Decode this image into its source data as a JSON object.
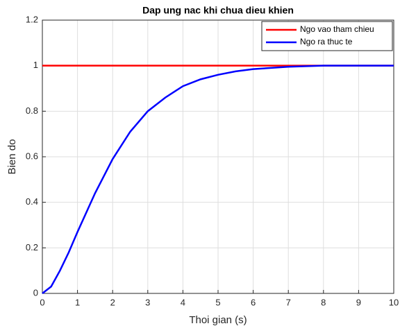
{
  "chart_data": {
    "type": "line",
    "title": "Dap ung nac khi chua dieu khien",
    "xlabel": "Thoi gian (s)",
    "ylabel": "Bien do",
    "x": [
      0,
      0.25,
      0.5,
      0.75,
      1,
      1.5,
      2,
      2.5,
      3,
      3.5,
      4,
      4.5,
      5,
      5.5,
      6,
      7,
      8,
      9,
      10
    ],
    "series": [
      {
        "name": "Ngo vao tham chieu",
        "color": "#ff0000",
        "values": [
          1,
          1,
          1,
          1,
          1,
          1,
          1,
          1,
          1,
          1,
          1,
          1,
          1,
          1,
          1,
          1,
          1,
          1,
          1
        ]
      },
      {
        "name": "Ngo ra thuc te",
        "color": "#0000ff",
        "values": [
          0,
          0.03,
          0.1,
          0.18,
          0.27,
          0.44,
          0.59,
          0.71,
          0.8,
          0.86,
          0.91,
          0.94,
          0.96,
          0.975,
          0.985,
          0.995,
          1,
          1,
          1
        ]
      }
    ],
    "xlim": [
      0,
      10
    ],
    "ylim": [
      0,
      1.2
    ],
    "xticks": [
      0,
      1,
      2,
      3,
      4,
      5,
      6,
      7,
      8,
      9,
      10
    ],
    "yticks": [
      0,
      0.2,
      0.4,
      0.6,
      0.8,
      1,
      1.2
    ],
    "grid": true,
    "legend": "top-right"
  }
}
